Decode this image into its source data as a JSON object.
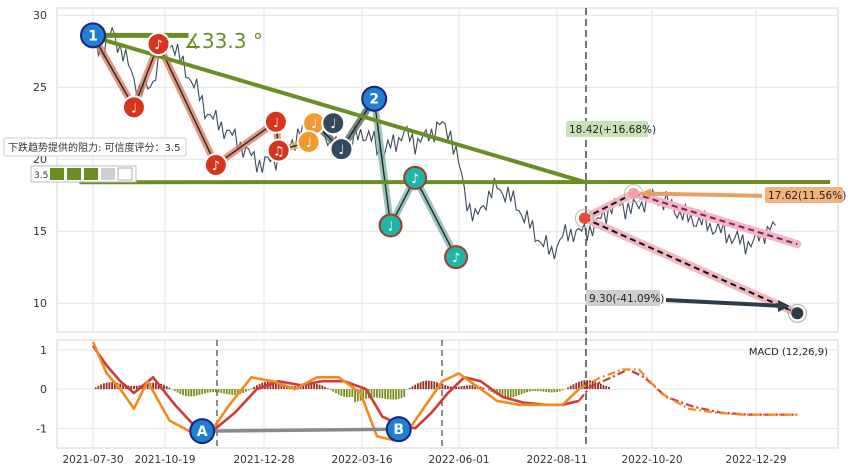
{
  "chart_data": [
    {
      "type": "line",
      "panel": "price",
      "ylim": [
        8,
        30.5
      ],
      "yticks": [
        10,
        15,
        20,
        25,
        30
      ],
      "x_ticks": [
        "2021-07-30",
        "2021-10-19",
        "2021-12-28",
        "2022-03-16",
        "2022-06-01",
        "2022-08-11",
        "2022-10-20",
        "2022-12-29"
      ],
      "series": [
        {
          "points": [
            [
              0,
              28.3
            ],
            [
              3,
              27.5
            ],
            [
              7,
              28.8
            ],
            [
              11,
              27.4
            ],
            [
              14,
              26.0
            ],
            [
              17,
              24.8
            ],
            [
              21,
              25.0
            ],
            [
              25,
              27.3
            ],
            [
              29,
              28.1
            ],
            [
              33,
              26.5
            ],
            [
              37,
              25.2
            ],
            [
              41,
              23.5
            ],
            [
              45,
              22.6
            ],
            [
              49,
              22.0
            ],
            [
              54,
              21.0
            ],
            [
              58,
              20.2
            ],
            [
              62,
              19.6
            ],
            [
              67,
              20.1
            ],
            [
              71,
              20.9
            ],
            [
              75,
              21.6
            ],
            [
              79,
              22.4
            ],
            [
              83,
              22.2
            ],
            [
              87,
              21.2
            ],
            [
              90,
              20.5
            ],
            [
              94,
              21.0
            ],
            [
              98,
              21.9
            ],
            [
              102,
              21.4
            ],
            [
              106,
              20.4
            ],
            [
              110,
              21.1
            ],
            [
              114,
              21.8
            ],
            [
              118,
              21.2
            ],
            [
              122,
              21.5
            ],
            [
              127,
              22.4
            ],
            [
              131,
              21.8
            ],
            [
              134,
              19.6
            ],
            [
              137,
              17.1
            ],
            [
              140,
              15.8
            ],
            [
              144,
              17.2
            ],
            [
              148,
              18.1
            ],
            [
              152,
              17.5
            ],
            [
              156,
              16.6
            ],
            [
              160,
              15.4
            ],
            [
              164,
              14.3
            ],
            [
              168,
              13.5
            ],
            [
              172,
              14.6
            ],
            [
              176,
              15.0
            ],
            [
              180,
              14.9
            ],
            [
              185,
              15.6
            ],
            [
              189,
              16.6
            ],
            [
              193,
              16.9
            ],
            [
              197,
              16.5
            ],
            [
              202,
              17.1
            ],
            [
              206,
              17.3
            ],
            [
              210,
              17.0
            ],
            [
              214,
              16.4
            ],
            [
              218,
              15.9
            ],
            [
              222,
              15.7
            ],
            [
              226,
              15.4
            ],
            [
              230,
              15.0
            ],
            [
              234,
              14.6
            ],
            [
              238,
              14.2
            ],
            [
              242,
              14.2
            ],
            [
              246,
              15.0
            ],
            [
              250,
              15.4
            ]
          ]
        }
      ],
      "trendlines": [
        {
          "from": [
            0,
            28.5
          ],
          "to": [
            180,
            18.42
          ]
        },
        {
          "from": [
            -5,
            18.4
          ],
          "to": [
            270,
            18.42
          ]
        },
        {
          "from": [
            0,
            28.6
          ],
          "to": [
            35,
            28.6
          ]
        }
      ],
      "forecast_dashed": [
        {
          "from": [
            180,
            15.9
          ],
          "to": [
            198,
            17.62
          ]
        },
        {
          "from": [
            198,
            17.62
          ],
          "to": [
            258,
            14.1
          ]
        },
        {
          "from": [
            180,
            15.9
          ],
          "to": [
            258,
            9.3
          ]
        }
      ],
      "wave_points": [
        {
          "label": "1",
          "x": 0,
          "y": 28.6,
          "style": "blue"
        },
        {
          "label": "♪",
          "x": 24,
          "y": 28.0,
          "style": "red"
        },
        {
          "label": "♩",
          "x": 15,
          "y": 23.6,
          "style": "red"
        },
        {
          "label": "♪",
          "x": 45,
          "y": 19.6,
          "style": "red"
        },
        {
          "label": "♩",
          "x": 67,
          "y": 22.6,
          "style": "red"
        },
        {
          "label": "♫",
          "x": 68,
          "y": 20.6,
          "style": "red"
        },
        {
          "label": "♩",
          "x": 81,
          "y": 22.5,
          "style": "orange"
        },
        {
          "label": "♩",
          "x": 79,
          "y": 21.2,
          "style": "orange"
        },
        {
          "label": "♩",
          "x": 88,
          "y": 22.5,
          "style": "dark"
        },
        {
          "label": "♩",
          "x": 91,
          "y": 20.7,
          "style": "dark"
        },
        {
          "label": "2",
          "x": 103,
          "y": 24.2,
          "style": "blue"
        },
        {
          "label": "♩",
          "x": 109,
          "y": 15.4,
          "style": "teal"
        },
        {
          "label": "♪",
          "x": 118,
          "y": 18.7,
          "style": "teal"
        },
        {
          "label": "♪",
          "x": 133,
          "y": 13.2,
          "style": "teal"
        }
      ],
      "angle_label": "∡33.3 °",
      "resistance_note": "下跌趋势提供的阻力: 可信度评分：3.5",
      "score_badge": "3.5",
      "target_labels": [
        {
          "text": "18.42(+16.68%)",
          "color": "#c9e2b5"
        },
        {
          "text": "17.62(11.56%)",
          "color": "#f3b27b"
        },
        {
          "text": "9.30(-41.09%)",
          "color": "#cfcfcf"
        }
      ]
    },
    {
      "type": "line",
      "panel": "macd",
      "title": "MACD (12,26,9)",
      "ylim": [
        -1.5,
        1.25
      ],
      "yticks": [
        1,
        0,
        -1
      ],
      "series": [
        {
          "color": "#d13a3a",
          "points": [
            [
              0,
              1.1
            ],
            [
              5,
              0.6
            ],
            [
              10,
              0.2
            ],
            [
              15,
              -0.1
            ],
            [
              22,
              0.3
            ],
            [
              30,
              -0.4
            ],
            [
              38,
              -1.0
            ],
            [
              45,
              -1.0
            ],
            [
              52,
              -0.6
            ],
            [
              60,
              0.0
            ],
            [
              68,
              0.2
            ],
            [
              76,
              0.1
            ],
            [
              84,
              0.2
            ],
            [
              92,
              0.2
            ],
            [
              100,
              0.0
            ],
            [
              106,
              -0.7
            ],
            [
              112,
              -0.9
            ],
            [
              118,
              -1.0
            ],
            [
              124,
              -0.6
            ],
            [
              130,
              -0.1
            ],
            [
              136,
              0.3
            ],
            [
              142,
              0.2
            ],
            [
              150,
              -0.2
            ],
            [
              158,
              -0.35
            ],
            [
              166,
              -0.4
            ],
            [
              172,
              -0.4
            ],
            [
              178,
              -0.3
            ],
            [
              182,
              0.05
            ],
            [
              190,
              0.3
            ],
            [
              196,
              0.5
            ],
            [
              202,
              0.3
            ],
            [
              210,
              -0.2
            ],
            [
              220,
              -0.45
            ],
            [
              230,
              -0.6
            ],
            [
              240,
              -0.65
            ],
            [
              250,
              -0.65
            ],
            [
              258,
              -0.65
            ]
          ]
        },
        {
          "color": "#f28a1f",
          "points": [
            [
              0,
              1.2
            ],
            [
              5,
              0.4
            ],
            [
              10,
              0.0
            ],
            [
              15,
              -0.5
            ],
            [
              20,
              0.2
            ],
            [
              28,
              -0.8
            ],
            [
              36,
              -1.1
            ],
            [
              44,
              -1.0
            ],
            [
              50,
              -0.4
            ],
            [
              58,
              0.3
            ],
            [
              66,
              0.2
            ],
            [
              74,
              0.0
            ],
            [
              82,
              0.3
            ],
            [
              90,
              0.3
            ],
            [
              98,
              -0.1
            ],
            [
              104,
              -1.2
            ],
            [
              110,
              -1.3
            ],
            [
              116,
              -1.0
            ],
            [
              122,
              -0.4
            ],
            [
              128,
              0.2
            ],
            [
              134,
              0.4
            ],
            [
              140,
              0.1
            ],
            [
              148,
              -0.3
            ],
            [
              156,
              -0.4
            ],
            [
              164,
              -0.4
            ],
            [
              172,
              -0.4
            ],
            [
              178,
              0.0
            ],
            [
              186,
              0.3
            ],
            [
              194,
              0.5
            ],
            [
              200,
              0.5
            ],
            [
              208,
              -0.1
            ],
            [
              218,
              -0.5
            ],
            [
              228,
              -0.6
            ],
            [
              238,
              -0.65
            ],
            [
              248,
              -0.65
            ],
            [
              258,
              -0.65
            ]
          ]
        }
      ],
      "crossover_markers": [
        {
          "label": "A",
          "x": 40,
          "y": -1.07
        },
        {
          "label": "B",
          "x": 112,
          "y": -1.02
        }
      ]
    }
  ]
}
